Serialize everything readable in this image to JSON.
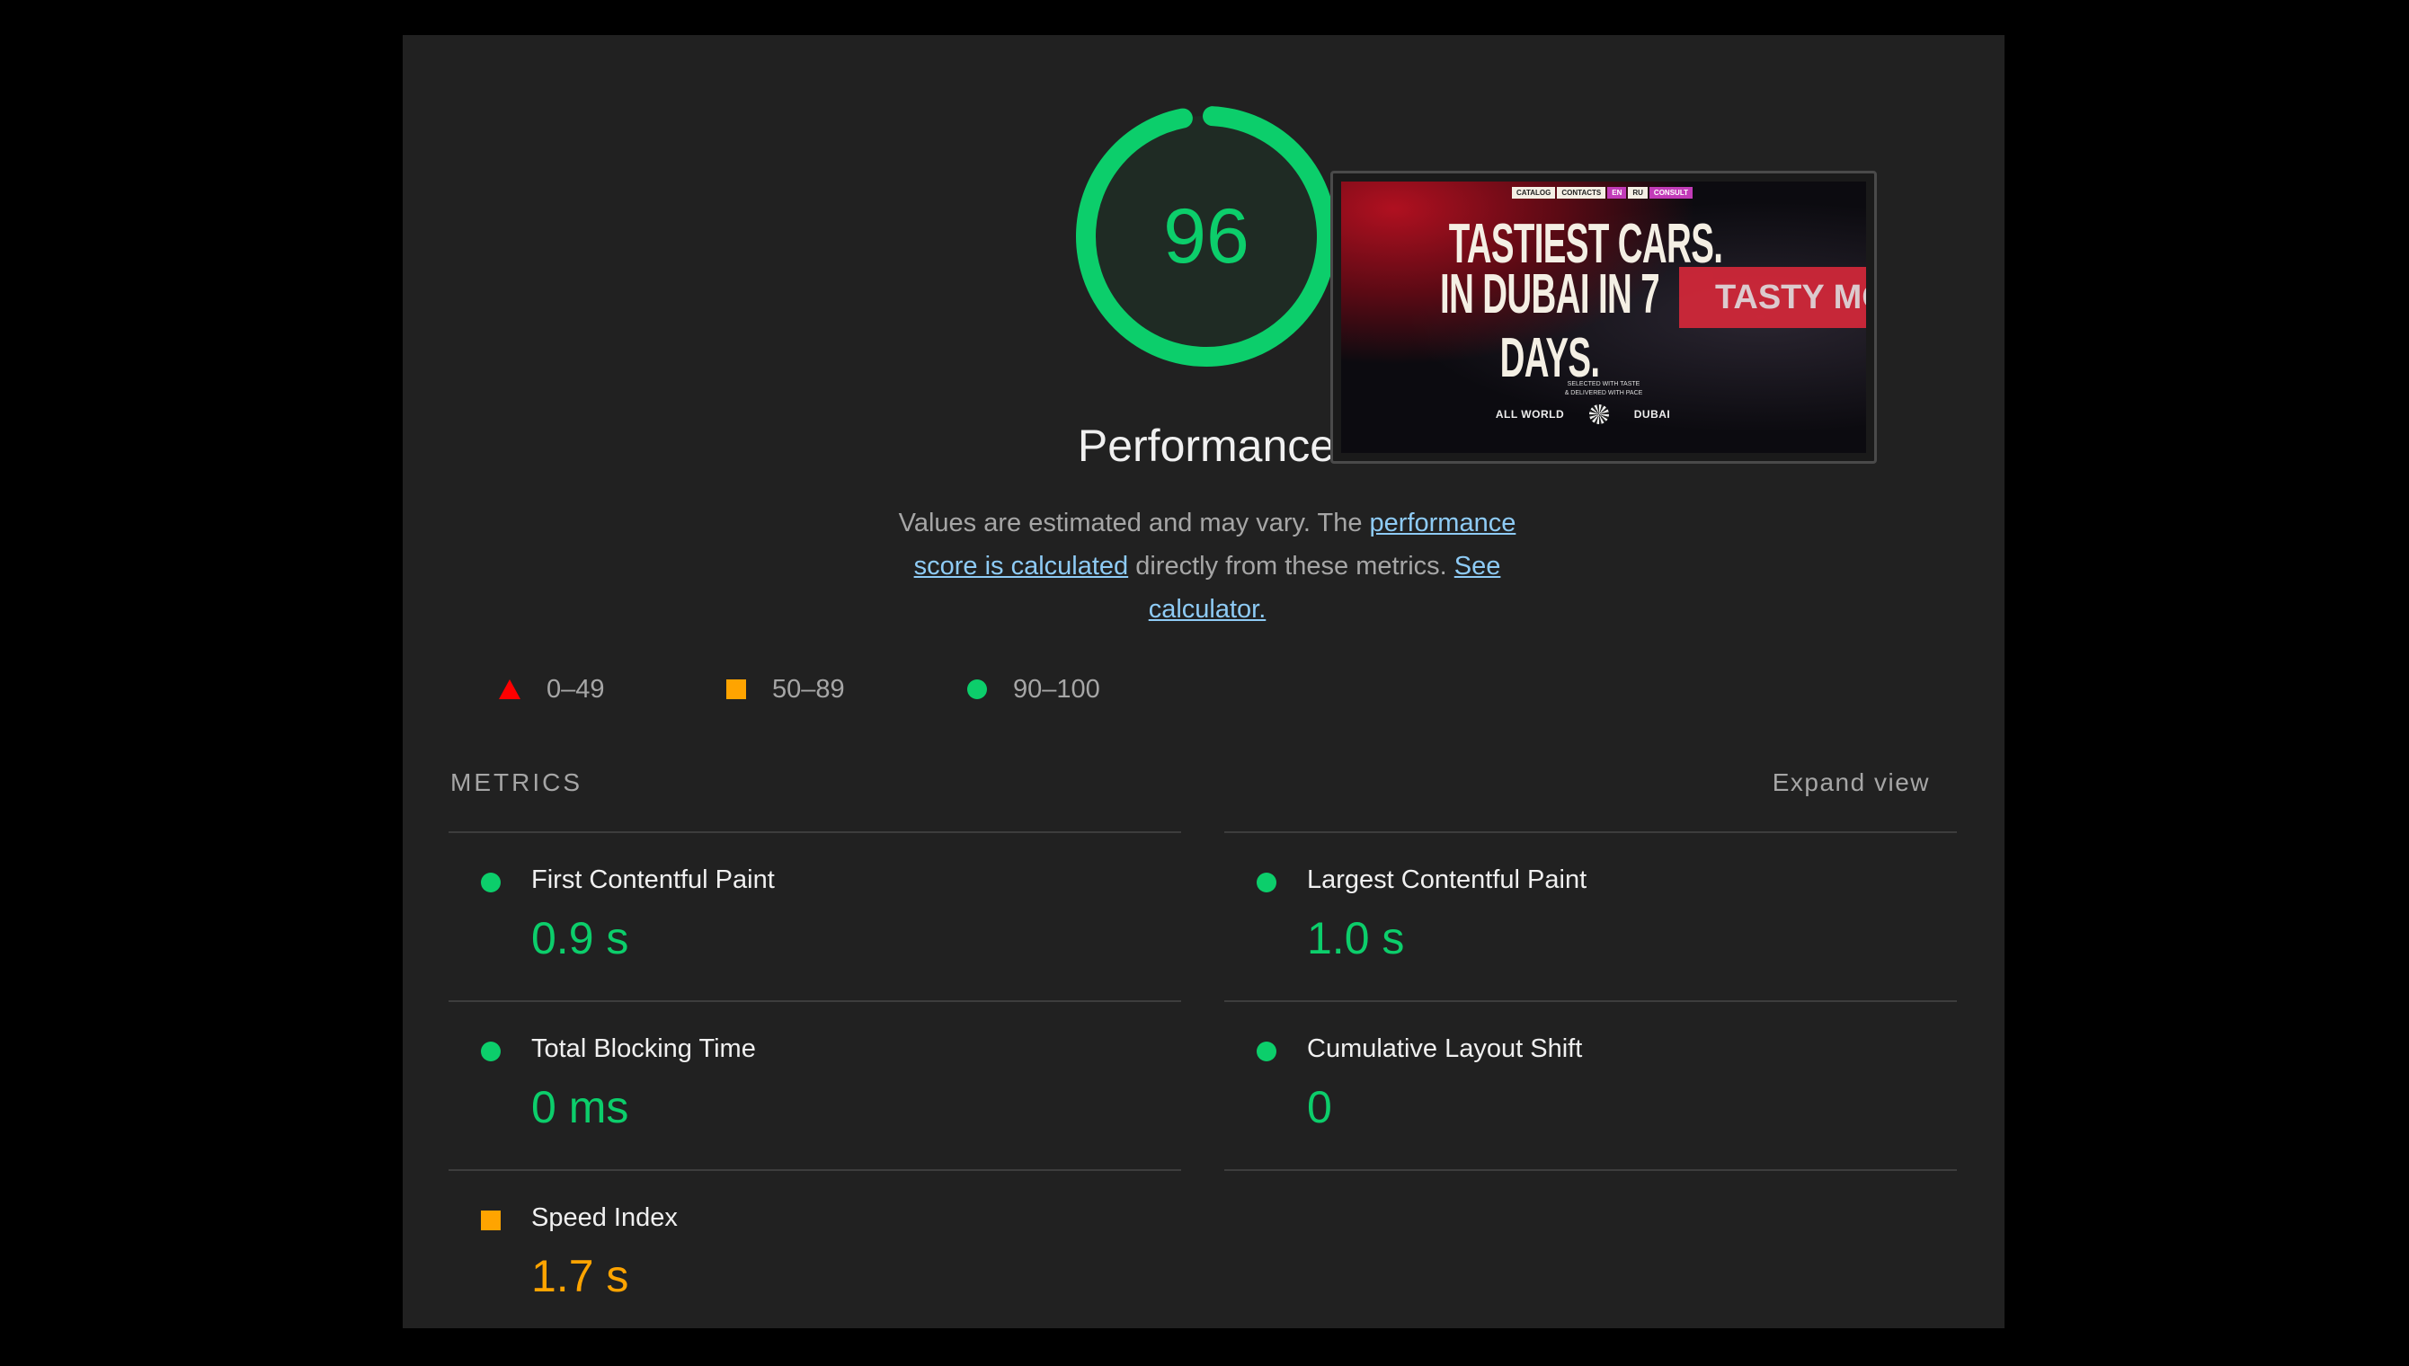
{
  "gauge": {
    "score": "96",
    "score_value": 96,
    "color": "#0cce6b"
  },
  "category_title": "Performance",
  "description": {
    "text1": "Values are estimated and may vary. The ",
    "link1": "performance score is calculated",
    "text2": " directly from these metrics. ",
    "link2": "See calculator."
  },
  "legend": [
    {
      "icon": "triangle-icon",
      "label": "0–49",
      "color": "#ff0000"
    },
    {
      "icon": "square-icon",
      "label": "50–89",
      "color": "#ffa400"
    },
    {
      "icon": "circle-icon",
      "label": "90–100",
      "color": "#0cce6b"
    }
  ],
  "screenshot": {
    "nav": [
      "CATALOG",
      "CONTACTS",
      "EN",
      "RU",
      "CONSULT"
    ],
    "headline1": "TASTIEST CARS.",
    "headline2": "IN DUBAI IN 7 DAYS.",
    "banner": "TASTY MO",
    "tagline1": "SELECTED WITH TASTE",
    "tagline2": "& DELIVERED WITH PACE",
    "left_label": "ALL WORLD",
    "right_label": "DUBAI"
  },
  "metrics": {
    "heading": "METRICS",
    "expand_label": "Expand view",
    "items": [
      {
        "name": "First Contentful Paint",
        "value": "0.9 s",
        "status": "pass",
        "color": "#0cce6b"
      },
      {
        "name": "Largest Contentful Paint",
        "value": "1.0 s",
        "status": "pass",
        "color": "#0cce6b"
      },
      {
        "name": "Total Blocking Time",
        "value": "0 ms",
        "status": "pass",
        "color": "#0cce6b"
      },
      {
        "name": "Cumulative Layout Shift",
        "value": "0",
        "status": "pass",
        "color": "#0cce6b"
      },
      {
        "name": "Speed Index",
        "value": "1.7 s",
        "status": "average",
        "color": "#ffa400"
      }
    ]
  }
}
